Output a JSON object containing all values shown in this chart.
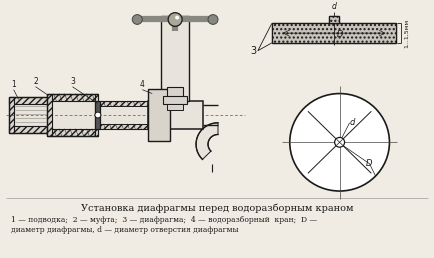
{
  "title": "Установка диафрагмы перед водоразборным краном",
  "caption_line1": "1 — подводка;  2 — муфта;  3 — диафрагма;  4 — водоразборный  кран;  D —",
  "caption_line2": "диаметр диафрагмы, d — диаметр отверстия диафрагмы",
  "bg_color": "#f0ece4",
  "line_color": "#1a1a1a",
  "title_fontsize": 7.0,
  "caption_fontsize": 5.5,
  "fig_width": 4.34,
  "fig_height": 2.58,
  "dpi": 100
}
